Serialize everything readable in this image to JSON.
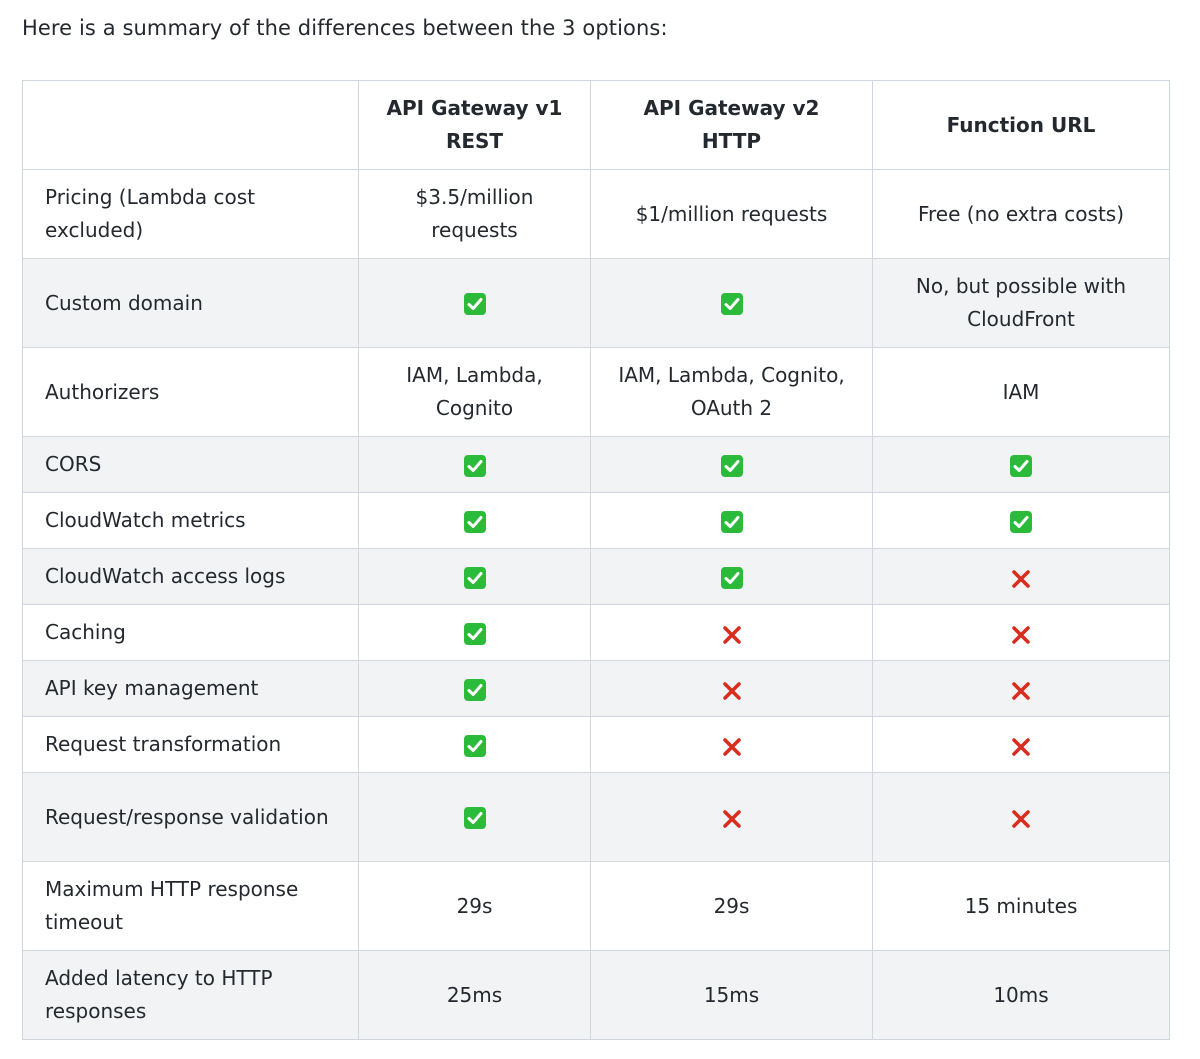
{
  "intro": "Here is a summary of the differences between the 3 options:",
  "table": {
    "headers": [
      "",
      "API Gateway v1 REST",
      "API Gateway v2 HTTP",
      "Function URL"
    ],
    "rows": [
      {
        "label": "Pricing (Lambda cost excluded)",
        "cells": [
          "$3.5/million requests",
          "$1/million requests",
          "Free (no extra costs)"
        ]
      },
      {
        "label": "Custom domain",
        "cells": [
          "check",
          "check",
          "No, but possible with CloudFront"
        ]
      },
      {
        "label": "Authorizers",
        "cells": [
          "IAM, Lambda, Cognito",
          "IAM, Lambda, Cognito, OAuth 2",
          "IAM"
        ]
      },
      {
        "label": "CORS",
        "cells": [
          "check",
          "check",
          "check"
        ]
      },
      {
        "label": "CloudWatch metrics",
        "cells": [
          "check",
          "check",
          "check"
        ]
      },
      {
        "label": "CloudWatch access logs",
        "cells": [
          "check",
          "check",
          "cross"
        ]
      },
      {
        "label": "Caching",
        "cells": [
          "check",
          "cross",
          "cross"
        ]
      },
      {
        "label": "API key management",
        "cells": [
          "check",
          "cross",
          "cross"
        ]
      },
      {
        "label": "Request transformation",
        "cells": [
          "check",
          "cross",
          "cross"
        ]
      },
      {
        "label": "Request/response validation",
        "cells": [
          "check",
          "cross",
          "cross"
        ]
      },
      {
        "label": "Maximum HTTP response timeout",
        "cells": [
          "29s",
          "29s",
          "15 minutes"
        ]
      },
      {
        "label": "Added latency to HTTP responses",
        "cells": [
          "25ms",
          "15ms",
          "10ms"
        ]
      }
    ]
  },
  "icons": {
    "check": "white-heavy-check-mark-icon",
    "cross": "cross-mark-icon"
  },
  "colors": {
    "check_bg": "#2cba3a",
    "cross": "#d92d20",
    "border": "#d0d7de",
    "alt_row": "#f1f3f5"
  }
}
